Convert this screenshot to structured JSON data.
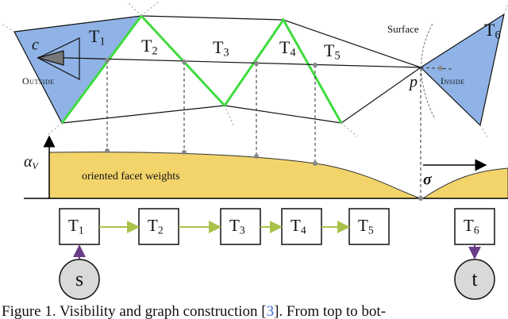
{
  "figure": {
    "camera": "c",
    "tetrahedra": [
      {
        "letter": "T",
        "index": "1"
      },
      {
        "letter": "T",
        "index": "2"
      },
      {
        "letter": "T",
        "index": "3"
      },
      {
        "letter": "T",
        "index": "4"
      },
      {
        "letter": "T",
        "index": "5"
      },
      {
        "letter": "T",
        "index": "6"
      }
    ],
    "outside_label": "Outside",
    "inside_label": "Inside",
    "surface_label": "Surface",
    "point_label": "p",
    "axis_label": {
      "letter": "α",
      "index": "V"
    },
    "weights_label": "oriented facet weights",
    "sigma_label": "σ",
    "graph_nodes": [
      {
        "letter": "T",
        "index": "1"
      },
      {
        "letter": "T",
        "index": "2"
      },
      {
        "letter": "T",
        "index": "3"
      },
      {
        "letter": "T",
        "index": "4"
      },
      {
        "letter": "T",
        "index": "5"
      },
      {
        "letter": "T",
        "index": "6"
      }
    ],
    "source": "s",
    "sink": "t",
    "caption": {
      "prefix": "Figure 1. Visibility and graph construction [",
      "ref": "3",
      "suffix": "]. From top to bot-"
    }
  }
}
